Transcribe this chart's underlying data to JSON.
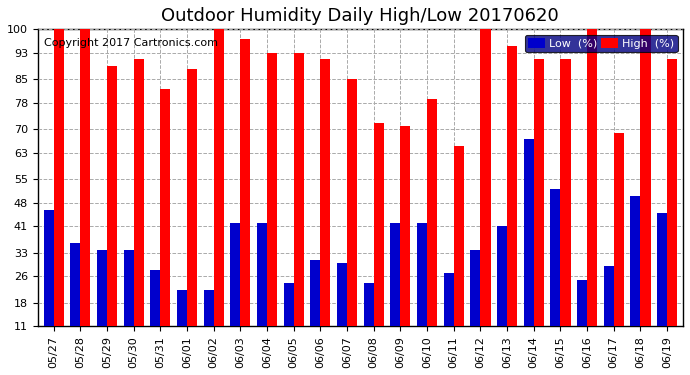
{
  "title": "Outdoor Humidity Daily High/Low 20170620",
  "copyright": "Copyright 2017 Cartronics.com",
  "dates": [
    "05/27",
    "05/28",
    "05/29",
    "05/30",
    "05/31",
    "06/01",
    "06/02",
    "06/03",
    "06/04",
    "06/05",
    "06/06",
    "06/07",
    "06/08",
    "06/09",
    "06/10",
    "06/11",
    "06/12",
    "06/13",
    "06/14",
    "06/15",
    "06/16",
    "06/17",
    "06/18",
    "06/19"
  ],
  "high_values": [
    100,
    100,
    89,
    91,
    82,
    88,
    100,
    97,
    93,
    93,
    91,
    85,
    72,
    71,
    79,
    65,
    100,
    95,
    91,
    91,
    100,
    69,
    100,
    91
  ],
  "low_values": [
    46,
    36,
    34,
    34,
    28,
    22,
    22,
    42,
    42,
    24,
    31,
    30,
    24,
    42,
    42,
    27,
    34,
    41,
    67,
    52,
    25,
    29,
    50,
    45
  ],
  "high_color": "#ff0000",
  "low_color": "#0000cc",
  "bg_color": "#ffffff",
  "grid_color": "#aaaaaa",
  "ylim": [
    11,
    100
  ],
  "yticks": [
    11,
    18,
    26,
    33,
    41,
    48,
    55,
    63,
    70,
    78,
    85,
    93,
    100
  ],
  "legend_low_label": "Low  (%)",
  "legend_high_label": "High  (%)",
  "title_fontsize": 13,
  "copyright_fontsize": 8,
  "tick_fontsize": 8
}
